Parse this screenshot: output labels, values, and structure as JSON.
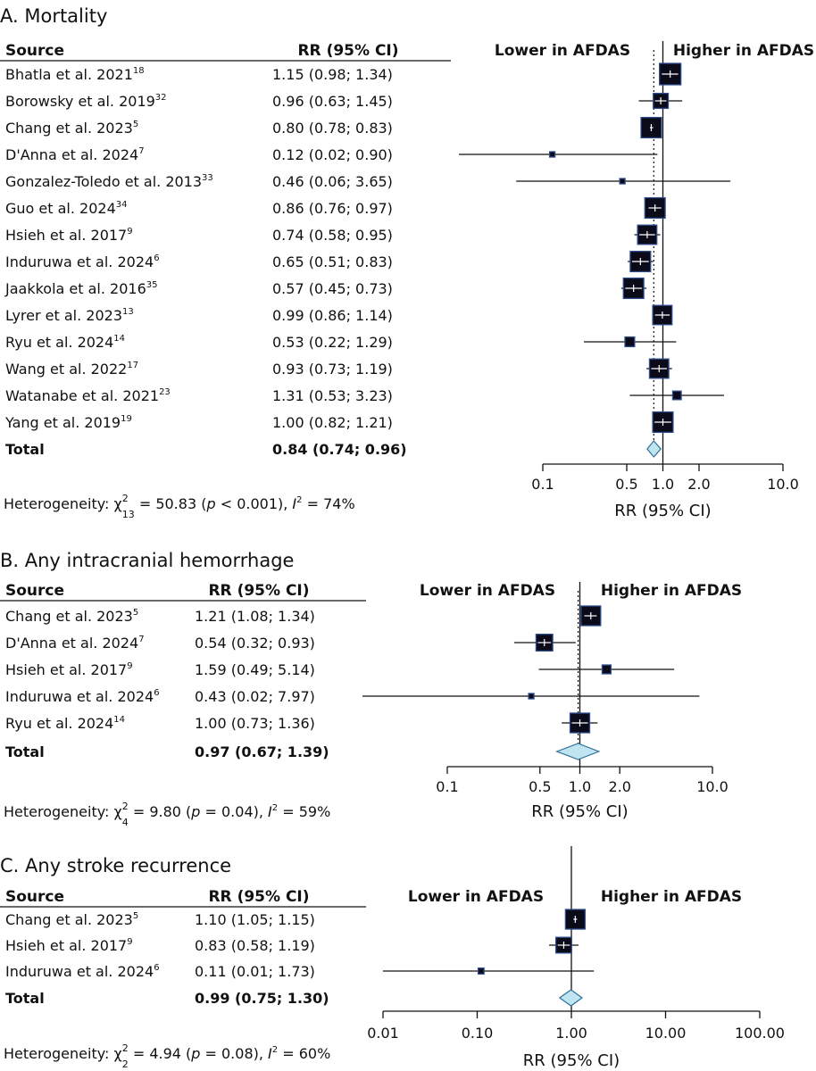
{
  "colors": {
    "box_fill": "#0a0a18",
    "box_stroke": "#2e4c8c",
    "diamond_fill": "#bfe6f0",
    "diamond_stroke": "#2e6f9a",
    "line": "#111111"
  },
  "chart_data": [
    {
      "type": "forest",
      "title": "A. Mortality",
      "col_source": "Source",
      "col_rr": "RR (95% CI)",
      "lower_label": "Lower in AFDAS",
      "higher_label": "Higher in AFDAS",
      "xlabel": "RR (95% CI)",
      "xlim": [
        0.1,
        10.0
      ],
      "scale": "log",
      "ticks": [
        "0.1",
        "0.5",
        "1.0",
        "2.0",
        "10.0"
      ],
      "tick_values": [
        0.1,
        0.5,
        1.0,
        2.0,
        10.0
      ],
      "studies": [
        {
          "name": "Bhatla et al. 2021",
          "ref": "18",
          "ci_text": "1.15 (0.98; 1.34)",
          "rr": 1.15,
          "lo": 0.98,
          "hi": 1.34,
          "weight": 1.0
        },
        {
          "name": "Borowsky et al. 2019",
          "ref": "32",
          "ci_text": "0.96 (0.63; 1.45)",
          "rr": 0.96,
          "lo": 0.63,
          "hi": 1.45,
          "weight": 0.7
        },
        {
          "name": "Chang et al. 2023",
          "ref": "5",
          "ci_text": "0.80 (0.78; 0.83)",
          "rr": 0.8,
          "lo": 0.78,
          "hi": 0.83,
          "weight": 0.95
        },
        {
          "name": "D'Anna et al. 2024",
          "ref": "7",
          "ci_text": "0.12 (0.02; 0.90)",
          "rr": 0.12,
          "lo": 0.02,
          "hi": 0.9,
          "weight": 0.25
        },
        {
          "name": "Gonzalez-Toledo et al. 2013",
          "ref": "33",
          "ci_text": "0.46 (0.06; 3.65)",
          "rr": 0.46,
          "lo": 0.06,
          "hi": 3.65,
          "weight": 0.25
        },
        {
          "name": "Guo et al. 2024",
          "ref": "34",
          "ci_text": "0.86 (0.76; 0.97)",
          "rr": 0.86,
          "lo": 0.76,
          "hi": 0.97,
          "weight": 0.95
        },
        {
          "name": "Hsieh et al. 2017",
          "ref": "9",
          "ci_text": "0.74 (0.58; 0.95)",
          "rr": 0.74,
          "lo": 0.58,
          "hi": 0.95,
          "weight": 0.9
        },
        {
          "name": "Induruwa et al. 2024",
          "ref": "6",
          "ci_text": "0.65 (0.51; 0.83)",
          "rr": 0.65,
          "lo": 0.51,
          "hi": 0.83,
          "weight": 0.95
        },
        {
          "name": "Jaakkola et al. 2016",
          "ref": "35",
          "ci_text": "0.57 (0.45; 0.73)",
          "rr": 0.57,
          "lo": 0.45,
          "hi": 0.73,
          "weight": 0.95
        },
        {
          "name": "Lyrer et al. 2023",
          "ref": "13",
          "ci_text": "0.99 (0.86; 1.14)",
          "rr": 0.99,
          "lo": 0.86,
          "hi": 1.14,
          "weight": 0.9
        },
        {
          "name": "Ryu et al. 2024",
          "ref": "14",
          "ci_text": "0.53 (0.22; 1.29)",
          "rr": 0.53,
          "lo": 0.22,
          "hi": 1.29,
          "weight": 0.45
        },
        {
          "name": "Wang et al. 2022",
          "ref": "17",
          "ci_text": "0.93 (0.73; 1.19)",
          "rr": 0.93,
          "lo": 0.73,
          "hi": 1.19,
          "weight": 0.9
        },
        {
          "name": "Watanabe et al. 2021",
          "ref": "23",
          "ci_text": "1.31 (0.53; 3.23)",
          "rr": 1.31,
          "lo": 0.53,
          "hi": 3.23,
          "weight": 0.4
        },
        {
          "name": "Yang et al. 2019",
          "ref": "19",
          "ci_text": "1.00 (0.82; 1.21)",
          "rr": 1.0,
          "lo": 0.82,
          "hi": 1.21,
          "weight": 0.95
        }
      ],
      "total": {
        "name": "Total",
        "ci_text": "0.84 (0.74; 0.96)",
        "rr": 0.84,
        "lo": 0.74,
        "hi": 0.96
      },
      "heterogeneity": {
        "prefix": "Heterogeneity: χ",
        "sup": "2",
        "sub": "13",
        "stat": " = 50.83 (",
        "p_sym": "p",
        "p_rest": " < 0.001), ",
        "i_sym": "I",
        "i_sup": "2",
        "i_rest": " = 74%"
      }
    },
    {
      "type": "forest",
      "title": "B. Any intracranial hemorrhage",
      "col_source": "Source",
      "col_rr": "RR (95% CI)",
      "lower_label": "Lower in AFDAS",
      "higher_label": "Higher in AFDAS",
      "xlabel": "RR (95% CI)",
      "xlim": [
        0.1,
        10.0
      ],
      "scale": "log",
      "ticks": [
        "0.1",
        "0.5",
        "1.0",
        "2.0",
        "10.0"
      ],
      "tick_values": [
        0.1,
        0.5,
        1.0,
        2.0,
        10.0
      ],
      "studies": [
        {
          "name": "Chang et al. 2023",
          "ref": "5",
          "ci_text": "1.21 (1.08; 1.34)",
          "rr": 1.21,
          "lo": 1.08,
          "hi": 1.34,
          "weight": 1.0
        },
        {
          "name": "D'Anna et al. 2024",
          "ref": "7",
          "ci_text": "0.54 (0.32; 0.93)",
          "rr": 0.54,
          "lo": 0.32,
          "hi": 0.93,
          "weight": 0.85
        },
        {
          "name": "Hsieh et al. 2017",
          "ref": "9",
          "ci_text": "1.59 (0.49; 5.14)",
          "rr": 1.59,
          "lo": 0.49,
          "hi": 5.14,
          "weight": 0.45
        },
        {
          "name": "Induruwa et al. 2024",
          "ref": "6",
          "ci_text": "0.43 (0.02; 7.97)",
          "rr": 0.43,
          "lo": 0.02,
          "hi": 7.97,
          "weight": 0.25
        },
        {
          "name": "Ryu et al. 2024",
          "ref": "14",
          "ci_text": "1.00 (0.73; 1.36)",
          "rr": 1.0,
          "lo": 0.73,
          "hi": 1.36,
          "weight": 1.0
        }
      ],
      "total": {
        "name": "Total",
        "ci_text": "0.97 (0.67; 1.39)",
        "rr": 0.97,
        "lo": 0.67,
        "hi": 1.39
      },
      "heterogeneity": {
        "prefix": "Heterogeneity: χ",
        "sup": "2",
        "sub": "4",
        "stat": " = 9.80 (",
        "p_sym": "p",
        "p_rest": " = 0.04), ",
        "i_sym": "I",
        "i_sup": "2",
        "i_rest": " = 59%"
      }
    },
    {
      "type": "forest",
      "title": "C. Any stroke recurrence",
      "col_source": "Source",
      "col_rr": "RR (95% CI)",
      "lower_label": "Lower in AFDAS",
      "higher_label": "Higher in AFDAS",
      "xlabel": "RR (95% CI)",
      "xlim": [
        0.01,
        100.0
      ],
      "scale": "log",
      "ticks": [
        "0.01",
        "0.10",
        "1.00",
        "10.00",
        "100.00"
      ],
      "tick_values": [
        0.01,
        0.1,
        1.0,
        10.0,
        100.0
      ],
      "studies": [
        {
          "name": "Chang et al. 2023",
          "ref": "5",
          "ci_text": "1.10 (1.05; 1.15)",
          "rr": 1.1,
          "lo": 1.05,
          "hi": 1.15,
          "weight": 1.0
        },
        {
          "name": "Hsieh et al. 2017",
          "ref": "9",
          "ci_text": "0.83 (0.58; 1.19)",
          "rr": 0.83,
          "lo": 0.58,
          "hi": 1.19,
          "weight": 0.8
        },
        {
          "name": "Induruwa et al. 2024",
          "ref": "6",
          "ci_text": "0.11 (0.01; 1.73)",
          "rr": 0.11,
          "lo": 0.01,
          "hi": 1.73,
          "weight": 0.3
        }
      ],
      "total": {
        "name": "Total",
        "ci_text": "0.99 (0.75; 1.30)",
        "rr": 0.99,
        "lo": 0.75,
        "hi": 1.3
      },
      "heterogeneity": {
        "prefix": "Heterogeneity: χ",
        "sup": "2",
        "sub": "2",
        "stat": " = 4.94 (",
        "p_sym": "p",
        "p_rest": " = 0.08), ",
        "i_sym": "I",
        "i_sup": "2",
        "i_rest": " = 60%"
      }
    }
  ]
}
